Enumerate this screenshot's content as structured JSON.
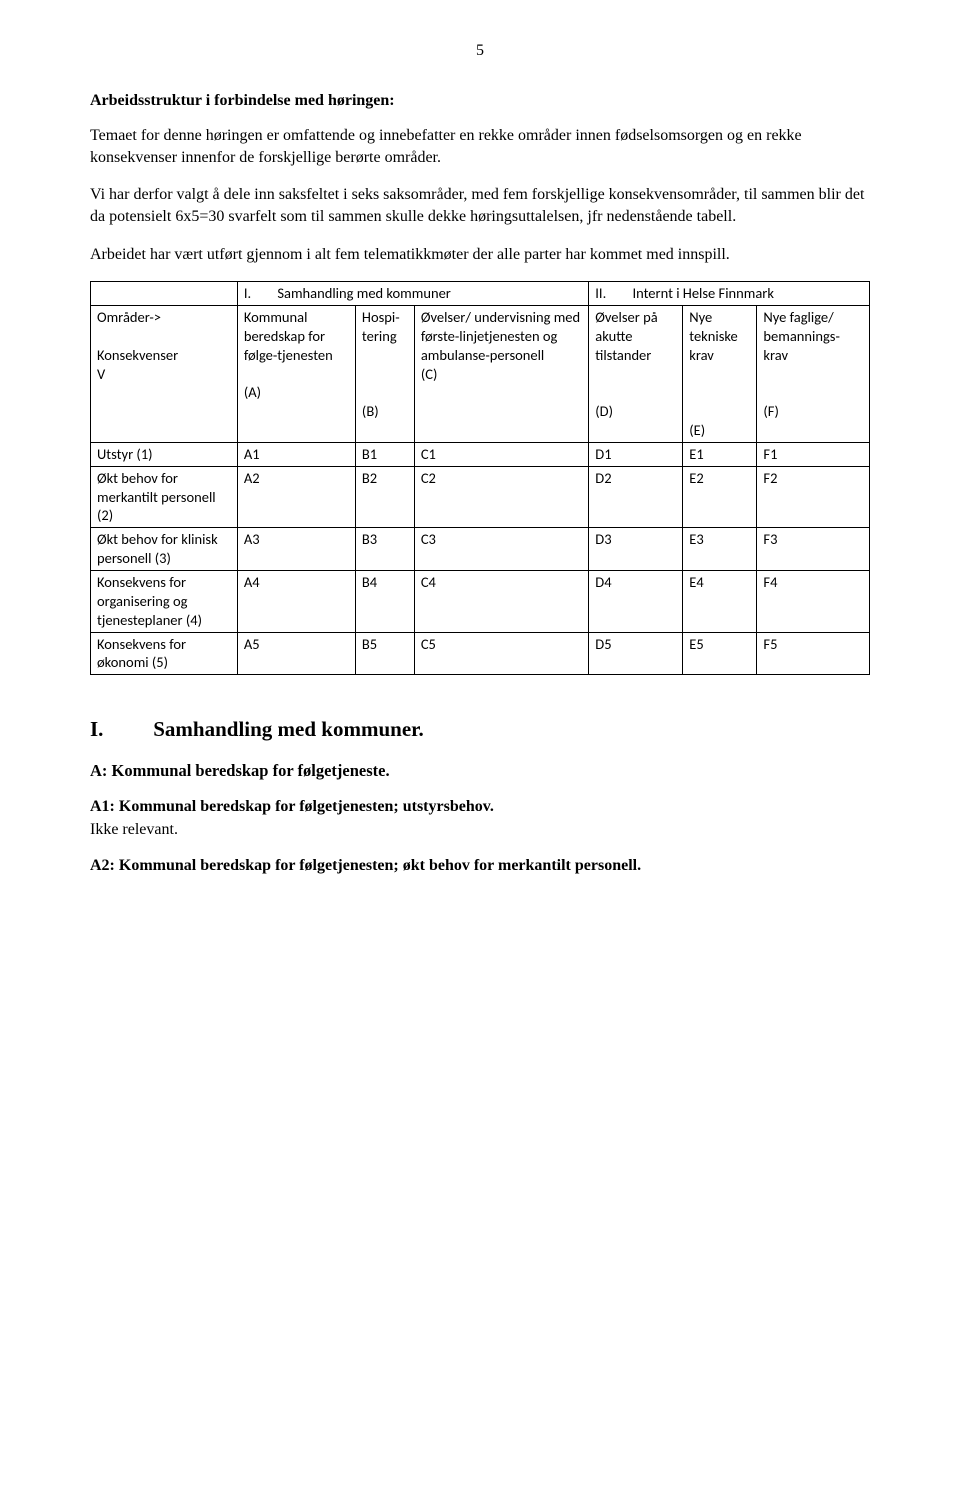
{
  "page_number": "5",
  "heading_1": "Arbeidsstruktur i forbindelse med høringen:",
  "para_1": "Temaet for denne høringen er omfattende og innebefatter en rekke områder innen fødselsomsorgen og en rekke konsekvenser innenfor de forskjellige berørte områder.",
  "para_2": "Vi har derfor valgt å dele inn saksfeltet i seks saksområder, med fem forskjellige konsekvensområder, til sammen blir det da potensielt 6x5=30 svarfelt som til sammen skulle dekke høringsuttalelsen, jfr nedenstående tabell.",
  "para_3": "Arbeidet har vært utført gjennom i alt fem telematikkmøter der alle parter har kommet med innspill.",
  "table": {
    "row1": {
      "c1": "",
      "c2": "I.        Samhandling med kommuner",
      "c3": "II.        Internt i Helse Finnmark"
    },
    "row2": {
      "c1": "Områder->\n\nKonsekvenser\n    V",
      "c2": "Kommunal beredskap for følge-tjenesten\n\n(A)",
      "c3": "Hospi-tering\n\n\n\n(B)",
      "c4": "Øvelser/ undervisning med første-linjetjenesten og ambulanse-personell\n (C)",
      "c5": "Øvelser på akutte tilstander\n\n\n(D)",
      "c6": "Nye tekniske krav\n\n\n\n(E)",
      "c7": "Nye faglige/ bemannings-krav\n\n\n(F)"
    },
    "rows": [
      {
        "c1": "Utstyr (1)",
        "c2": "A1",
        "c3": "B1",
        "c4": "C1",
        "c5": "D1",
        "c6": "E1",
        "c7": "F1"
      },
      {
        "c1": "Økt behov for merkantilt personell (2)",
        "c2": "A2",
        "c3": "B2",
        "c4": "C2",
        "c5": "D2",
        "c6": "E2",
        "c7": "F2"
      },
      {
        "c1": "Økt behov for klinisk personell (3)",
        "c2": "A3",
        "c3": "B3",
        "c4": "C3",
        "c5": "D3",
        "c6": "E3",
        "c7": "F3"
      },
      {
        "c1": "Konsekvens for organisering og tjenesteplaner (4)",
        "c2": "A4",
        "c3": "B4",
        "c4": "C4",
        "c5": "D4",
        "c6": "E4",
        "c7": "F4"
      },
      {
        "c1": "Konsekvens for økonomi (5)",
        "c2": "A5",
        "c3": "B5",
        "c4": "C5",
        "c5": "D5",
        "c6": "E5",
        "c7": "F5"
      }
    ]
  },
  "section_I_num": "I.",
  "section_I_title": "Samhandling med kommuner.",
  "section_A_title": "A: Kommunal beredskap for følgetjeneste.",
  "section_A1_title": "A1: Kommunal beredskap for følgetjenesten; utstyrsbehov.",
  "section_A1_text": "Ikke relevant.",
  "section_A2_title": "A2: Kommunal beredskap for følgetjenesten; økt behov for merkantilt personell."
}
